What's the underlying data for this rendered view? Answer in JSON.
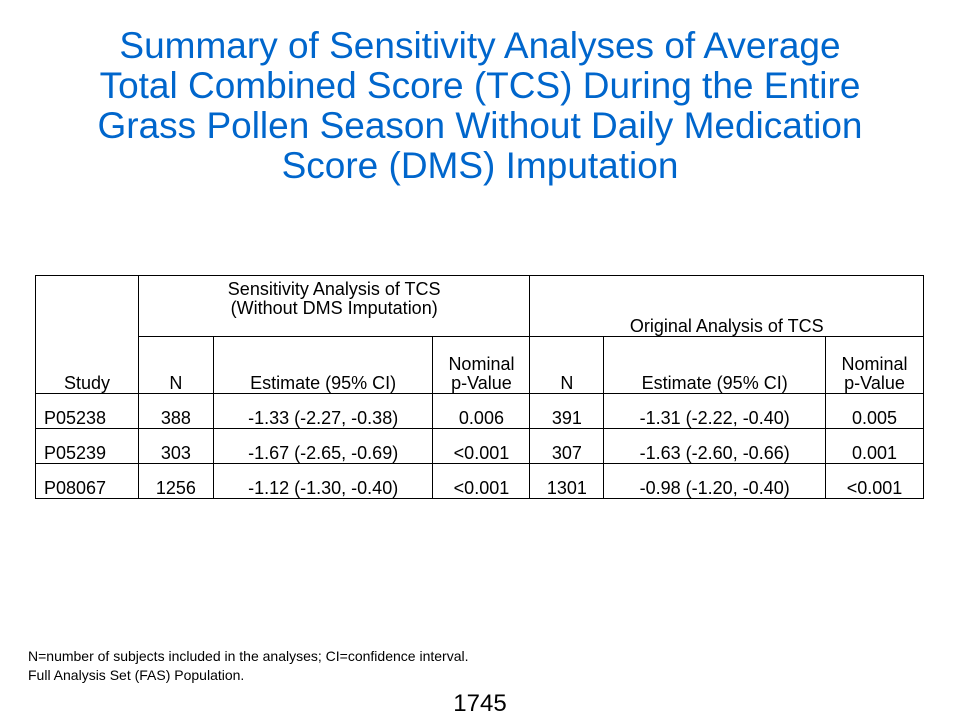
{
  "title": {
    "line1": "Summary of Sensitivity Analyses of Average",
    "line2": "Total Combined Score (TCS) During the Entire",
    "line3": "Grass Pollen Season Without Daily Medication",
    "line4": "Score (DMS) Imputation"
  },
  "table": {
    "study_header": "Study",
    "group_sensitivity_line1": "Sensitivity Analysis of TCS",
    "group_sensitivity_line2": "(Without DMS Imputation)",
    "group_original": "Original Analysis of TCS",
    "col_n": "N",
    "col_estimate": "Estimate (95% CI)",
    "col_p_line1": "Nominal",
    "col_p_line2": "p-Value",
    "rows": [
      {
        "study": "P05238",
        "sens_n": "388",
        "sens_est": "-1.33 (-2.27, -0.38)",
        "sens_p": "0.006",
        "orig_n": "391",
        "orig_est": "-1.31 (-2.22, -0.40)",
        "orig_p": "0.005"
      },
      {
        "study": "P05239",
        "sens_n": "303",
        "sens_est": "-1.67 (-2.65, -0.69)",
        "sens_p": "<0.001",
        "orig_n": "307",
        "orig_est": "-1.63 (-2.60, -0.66)",
        "orig_p": "0.001"
      },
      {
        "study": "P08067",
        "sens_n": "1256",
        "sens_est": "-1.12 (-1.30, -0.40)",
        "sens_p": "<0.001",
        "orig_n": "1301",
        "orig_est": "-0.98 (-1.20, -0.40)",
        "orig_p": "<0.001"
      }
    ]
  },
  "footnote": {
    "line1": "N=number of subjects included in the analyses; CI=confidence interval.",
    "line2": "Full Analysis Set (FAS) Population."
  },
  "page_number": "1745",
  "colors": {
    "title": "#0066cc",
    "header_rule": "#1f5fa8"
  }
}
